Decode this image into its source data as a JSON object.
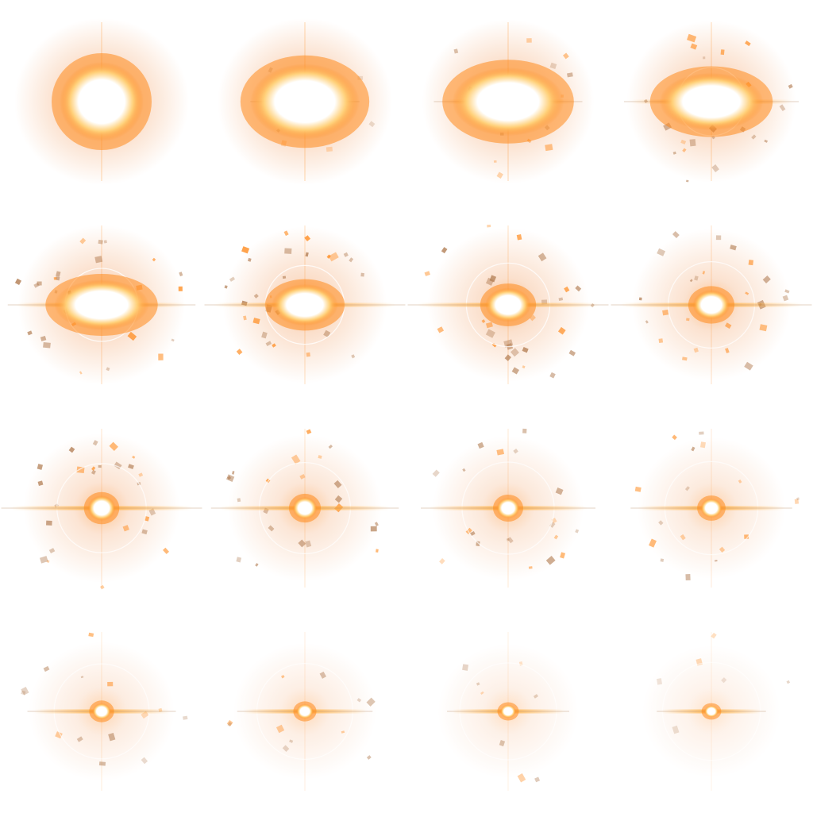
{
  "sprite_sheet": {
    "layout": {
      "rows": 4,
      "columns": 4
    },
    "palette": {
      "glow_outer": "#f3a46b",
      "glow_mid": "#ff8a1c",
      "core": "#ffffff",
      "core_hot": "#ffd27a",
      "streak": "#ffb347",
      "debris": "#b07a4f",
      "ring": "#ffffff"
    },
    "frames": [
      {
        "index": 1,
        "glow": 1.0,
        "core": 1.0,
        "stretch": 1.0,
        "streak": 0.0,
        "debris": 0.0,
        "ring": 0.0
      },
      {
        "index": 2,
        "glow": 1.0,
        "core": 0.95,
        "stretch": 1.4,
        "streak": 0.3,
        "debris": 0.2,
        "ring": 0.0
      },
      {
        "index": 3,
        "glow": 0.95,
        "core": 0.85,
        "stretch": 1.6,
        "streak": 0.6,
        "debris": 0.5,
        "ring": 0.0
      },
      {
        "index": 4,
        "glow": 0.9,
        "core": 0.7,
        "stretch": 1.8,
        "streak": 0.8,
        "debris": 0.8,
        "ring": 0.6
      },
      {
        "index": 5,
        "glow": 0.85,
        "core": 0.6,
        "stretch": 1.9,
        "streak": 0.9,
        "debris": 1.0,
        "ring": 0.7
      },
      {
        "index": 6,
        "glow": 0.8,
        "core": 0.48,
        "stretch": 1.6,
        "streak": 1.0,
        "debris": 1.0,
        "ring": 0.7
      },
      {
        "index": 7,
        "glow": 0.75,
        "core": 0.38,
        "stretch": 1.3,
        "streak": 1.0,
        "debris": 1.0,
        "ring": 0.6
      },
      {
        "index": 8,
        "glow": 0.7,
        "core": 0.32,
        "stretch": 1.2,
        "streak": 1.0,
        "debris": 0.9,
        "ring": 0.5
      },
      {
        "index": 9,
        "glow": 0.65,
        "core": 0.26,
        "stretch": 1.0,
        "streak": 1.0,
        "debris": 0.9,
        "ring": 0.45
      },
      {
        "index": 10,
        "glow": 0.6,
        "core": 0.22,
        "stretch": 1.0,
        "streak": 0.9,
        "debris": 0.8,
        "ring": 0.4
      },
      {
        "index": 11,
        "glow": 0.55,
        "core": 0.2,
        "stretch": 1.0,
        "streak": 0.8,
        "debris": 0.7,
        "ring": 0.35
      },
      {
        "index": 12,
        "glow": 0.5,
        "core": 0.18,
        "stretch": 1.0,
        "streak": 0.7,
        "debris": 0.6,
        "ring": 0.3
      },
      {
        "index": 13,
        "glow": 0.45,
        "core": 0.14,
        "stretch": 1.0,
        "streak": 0.6,
        "debris": 0.5,
        "ring": 0.25
      },
      {
        "index": 14,
        "glow": 0.4,
        "core": 0.12,
        "stretch": 1.0,
        "streak": 0.5,
        "debris": 0.4,
        "ring": 0.2
      },
      {
        "index": 15,
        "glow": 0.35,
        "core": 0.1,
        "stretch": 1.0,
        "streak": 0.4,
        "debris": 0.3,
        "ring": 0.15
      },
      {
        "index": 16,
        "glow": 0.3,
        "core": 0.08,
        "stretch": 1.0,
        "streak": 0.3,
        "debris": 0.2,
        "ring": 0.12
      }
    ]
  }
}
